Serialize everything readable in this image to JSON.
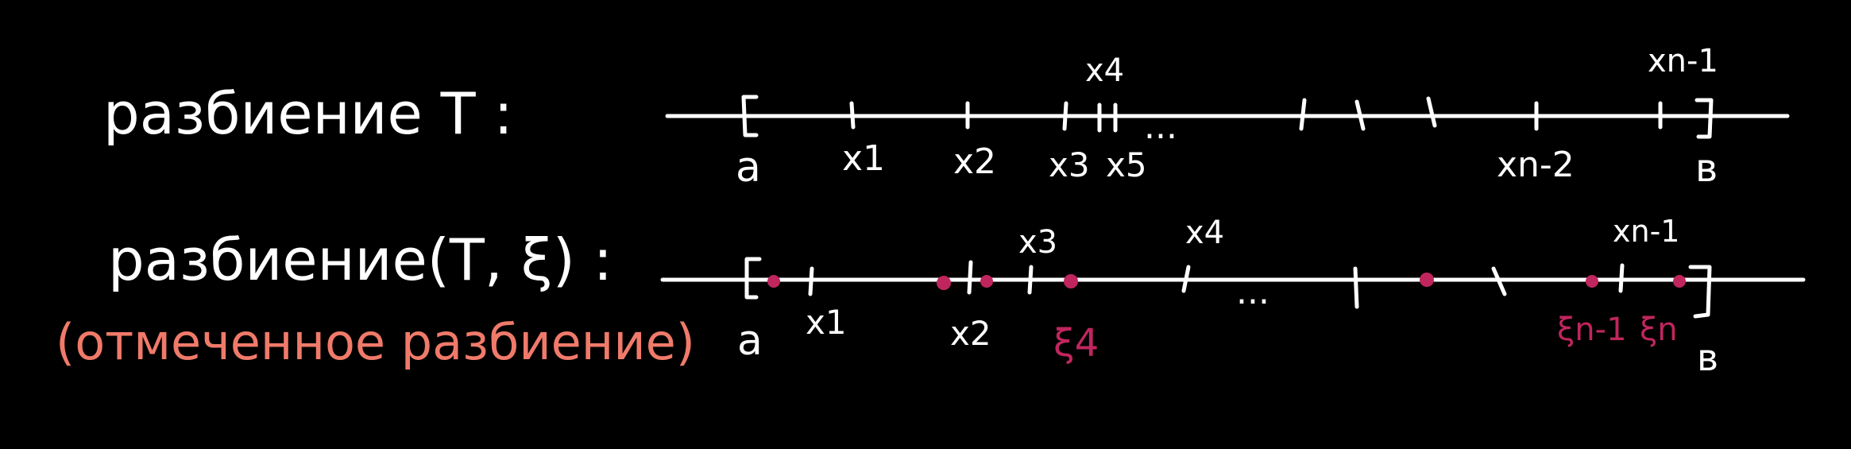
{
  "colors": {
    "background": "#000000",
    "ink": "#ffffff",
    "tag_points": "#c0265e",
    "note": "#f07a6a"
  },
  "row1": {
    "title": "разбиение Т :",
    "label_a": "a",
    "label_b": "в",
    "ellipsis": "...",
    "labels": {
      "x1": "x1",
      "x2": "x2",
      "x3": "x3",
      "x4": "x4",
      "x5": "x5",
      "xn2": "xn-2",
      "xn1": "xn-1"
    }
  },
  "row2": {
    "title": "разбиение(Т, ξ) :",
    "note": "(отмеченное разбиение)",
    "label_a": "a",
    "label_b": "в",
    "ellipsis": "...",
    "labels": {
      "x1": "x1",
      "x2": "x2",
      "x3": "x3",
      "x4": "x4",
      "xn1": "xn-1"
    },
    "xi_labels": {
      "xi4": "ξ4",
      "xin1": "ξn-1",
      "xin": "ξn"
    }
  }
}
